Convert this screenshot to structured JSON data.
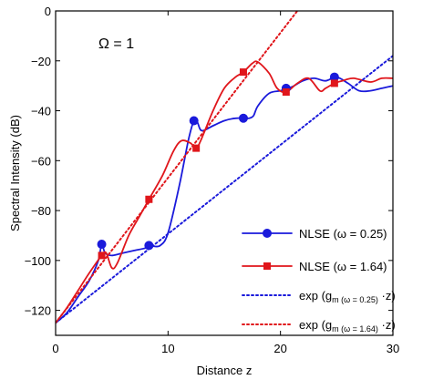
{
  "chart_data": {
    "type": "line",
    "xlabel": "Distance z",
    "ylabel": "Spectral Intensity (dB)",
    "xlim": [
      0,
      30
    ],
    "ylim": [
      -130,
      0
    ],
    "xticks": [
      0,
      10,
      20,
      30
    ],
    "yticks": [
      0,
      -20,
      -40,
      -60,
      -80,
      -100,
      -120
    ],
    "grid": false,
    "legend_position": "bottom-right",
    "annotation": "Ω = 1",
    "colors": {
      "blue": "#1a1adb",
      "red": "#e0161b"
    },
    "series": [
      {
        "name": "NLSE (ω = 0.25)",
        "style": "solid",
        "color": "#1a1adb",
        "marker": "circle",
        "points": [
          [
            0,
            -125
          ],
          [
            1,
            -121
          ],
          [
            2,
            -114.5
          ],
          [
            3,
            -108
          ],
          [
            3.8,
            -100
          ],
          [
            4.1,
            -93.5
          ],
          [
            4.4,
            -97
          ],
          [
            5,
            -98
          ],
          [
            6,
            -97
          ],
          [
            7,
            -96
          ],
          [
            8,
            -95
          ],
          [
            8.3,
            -94
          ],
          [
            8.6,
            -94.2
          ],
          [
            9.3,
            -94
          ],
          [
            10,
            -89
          ],
          [
            11,
            -70
          ],
          [
            11.8,
            -52
          ],
          [
            12.3,
            -44
          ],
          [
            12.6,
            -44.5
          ],
          [
            13,
            -48
          ],
          [
            14,
            -46
          ],
          [
            15,
            -44
          ],
          [
            16,
            -43
          ],
          [
            16.7,
            -43
          ],
          [
            17.2,
            -43
          ],
          [
            17.6,
            -42
          ],
          [
            18,
            -38
          ],
          [
            19,
            -33
          ],
          [
            20,
            -32
          ],
          [
            20.5,
            -31
          ],
          [
            21,
            -30.5
          ],
          [
            22,
            -28
          ],
          [
            23,
            -27
          ],
          [
            24,
            -28
          ],
          [
            25,
            -26.5
          ],
          [
            26,
            -29
          ],
          [
            27,
            -32
          ],
          [
            28,
            -32
          ],
          [
            29,
            -31
          ],
          [
            30,
            -30
          ]
        ],
        "markers": [
          [
            4.1,
            -93.5
          ],
          [
            8.3,
            -94
          ],
          [
            12.3,
            -44
          ],
          [
            16.7,
            -43
          ],
          [
            20.5,
            -31
          ],
          [
            24.8,
            -26.5
          ]
        ]
      },
      {
        "name": "NLSE (ω = 1.64)",
        "style": "solid",
        "color": "#e0161b",
        "marker": "square",
        "points": [
          [
            0,
            -125
          ],
          [
            1,
            -119
          ],
          [
            2,
            -112
          ],
          [
            3,
            -105
          ],
          [
            4.1,
            -98
          ],
          [
            4.5,
            -97
          ],
          [
            5,
            -103
          ],
          [
            5.5,
            -101
          ],
          [
            6.5,
            -90
          ],
          [
            7.5,
            -82
          ],
          [
            8.3,
            -75.5
          ],
          [
            9.5,
            -66
          ],
          [
            10.5,
            -56
          ],
          [
            11.2,
            -52
          ],
          [
            12,
            -53
          ],
          [
            12.5,
            -55
          ],
          [
            13,
            -51
          ],
          [
            14,
            -40
          ],
          [
            15,
            -31
          ],
          [
            16,
            -26.5
          ],
          [
            16.7,
            -24.5
          ],
          [
            17.5,
            -21
          ],
          [
            18,
            -20.5
          ],
          [
            19,
            -25
          ],
          [
            19.7,
            -31
          ],
          [
            20.5,
            -32.5
          ],
          [
            21.5,
            -29
          ],
          [
            22.5,
            -27
          ],
          [
            23.5,
            -32
          ],
          [
            24,
            -31
          ],
          [
            24.8,
            -29
          ],
          [
            25.5,
            -28
          ],
          [
            26.5,
            -27
          ],
          [
            28,
            -28.5
          ],
          [
            29,
            -27
          ],
          [
            30,
            -27
          ]
        ],
        "markers": [
          [
            4.1,
            -98
          ],
          [
            8.3,
            -75.5
          ],
          [
            12.5,
            -55
          ],
          [
            16.7,
            -24.5
          ],
          [
            20.5,
            -32.5
          ],
          [
            24.8,
            -29
          ]
        ]
      },
      {
        "name": "exp (g_m(ω = 0.25) · z)",
        "label_main": "exp (g",
        "label_sub": "m (ω = 0.25)",
        "label_end": " ·z)",
        "style": "dotted",
        "color": "#1a1adb",
        "points": [
          [
            0,
            -125
          ],
          [
            30,
            -18
          ]
        ]
      },
      {
        "name": "exp (g_m(ω = 1.64) · z)",
        "label_main": "exp (g",
        "label_sub": "m (ω = 1.64)",
        "label_end": " ·z)",
        "style": "dotted",
        "color": "#e0161b",
        "points": [
          [
            0,
            -125
          ],
          [
            21.5,
            0
          ]
        ]
      }
    ]
  }
}
